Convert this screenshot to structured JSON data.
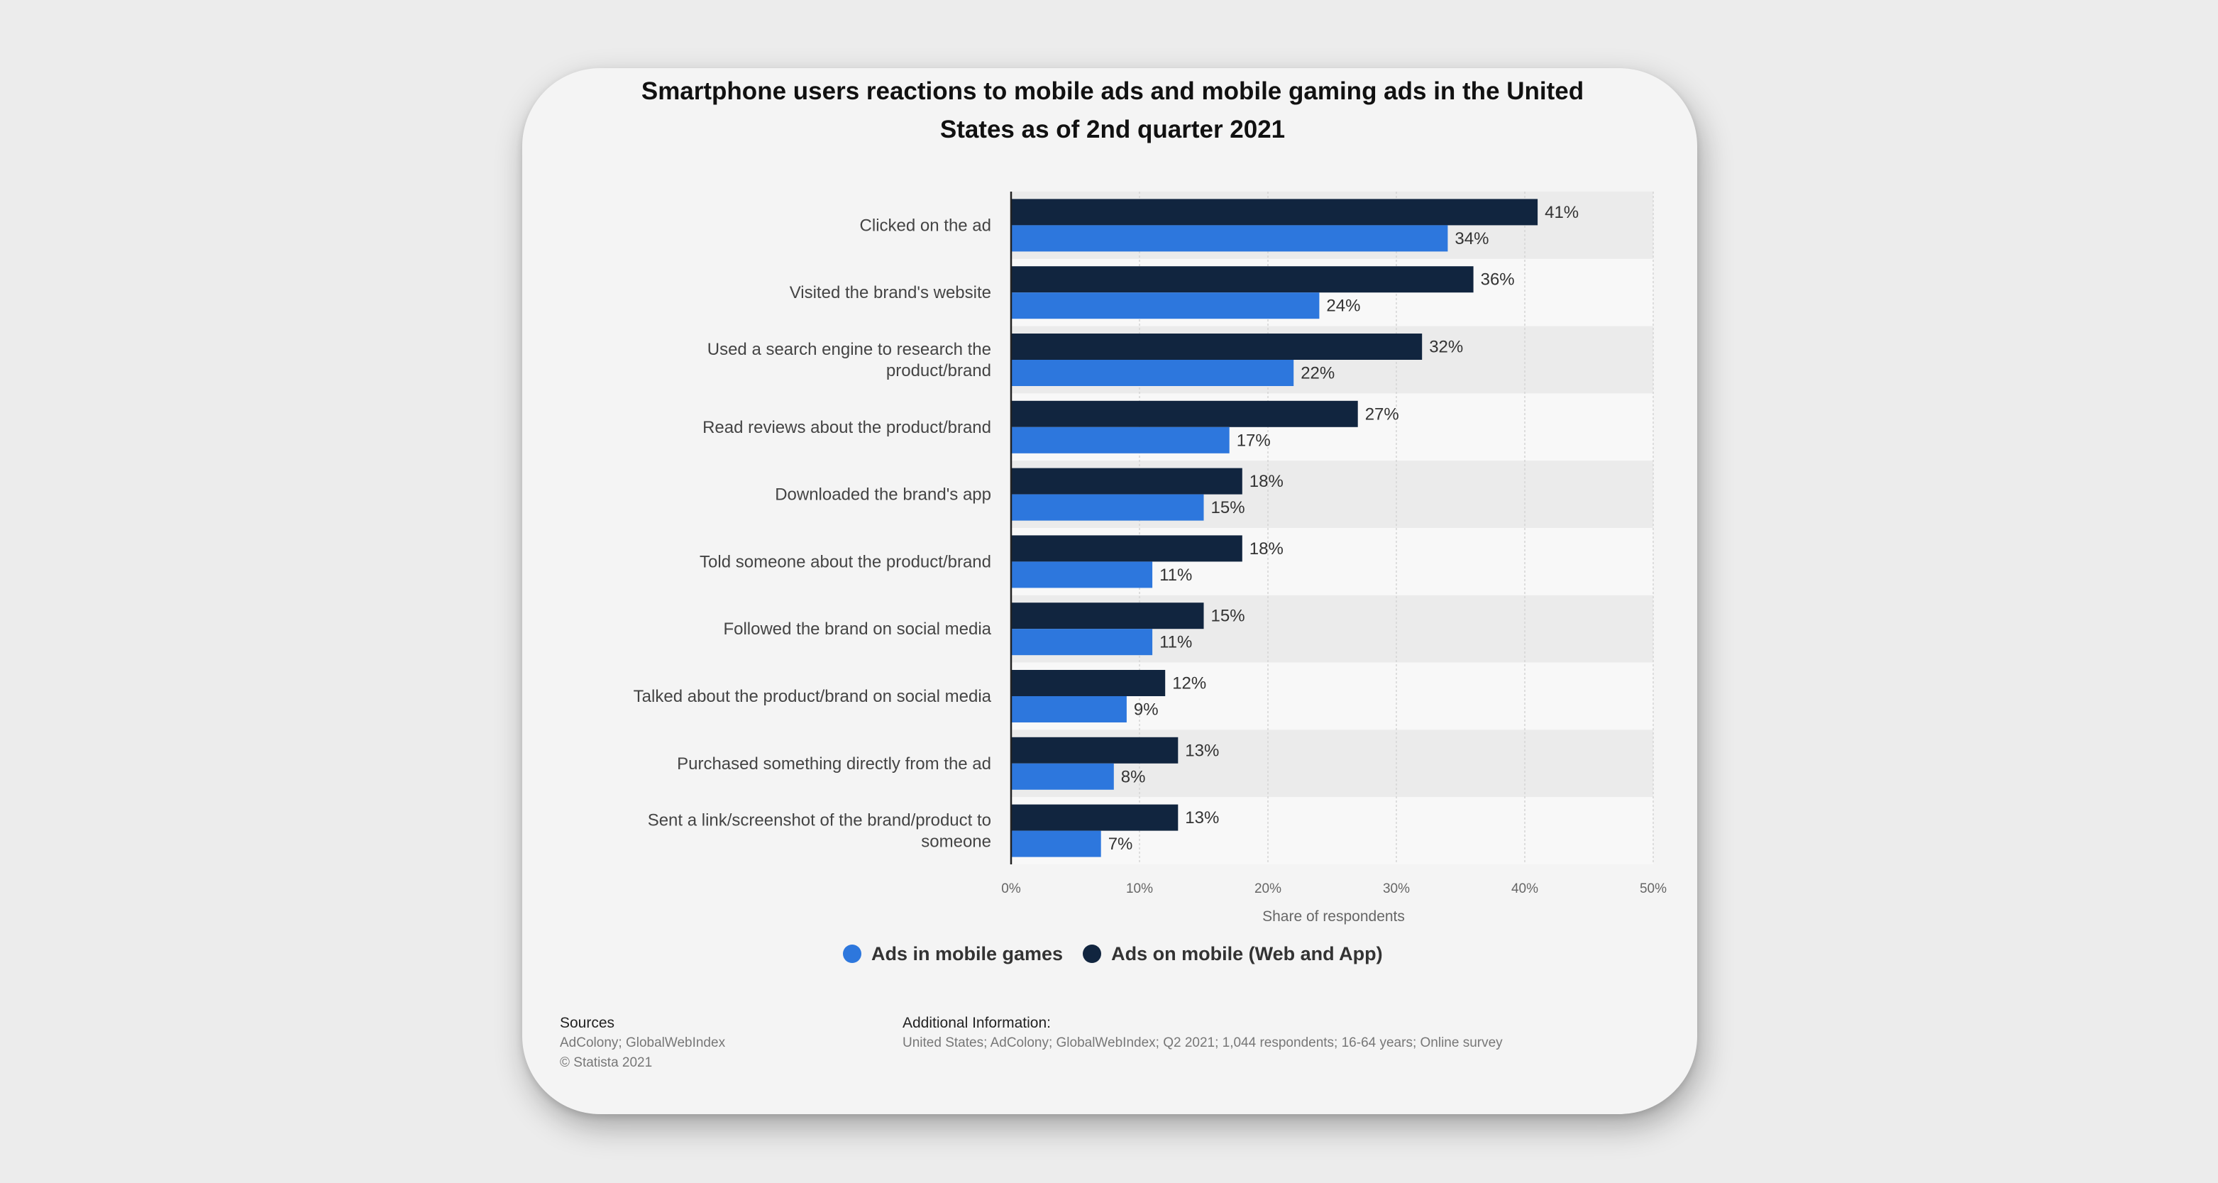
{
  "colors": {
    "mobile_games": "#2d77dd",
    "mobile_web_app": "#11253f",
    "band": "#ebebeb",
    "band_alt": "#f8f8f8",
    "grid": "#d4d4d4"
  },
  "chart_data": {
    "type": "bar",
    "orientation": "horizontal",
    "title": "Smartphone users reactions to mobile ads and mobile gaming ads in the United States as of 2nd quarter 2021",
    "xlabel": "Share of respondents",
    "ylabel": "",
    "xlim": [
      0,
      50
    ],
    "x_ticks": [
      "0%",
      "10%",
      "20%",
      "30%",
      "40%",
      "50%"
    ],
    "grid": true,
    "legend_position": "bottom-center",
    "categories": [
      "Clicked on the ad",
      "Visited the brand's website",
      "Used a search engine to research the product/brand",
      "Read reviews about the product/brand",
      "Downloaded the brand's app",
      "Told someone about the product/brand",
      "Followed the brand on social media",
      "Talked about the product/brand on social media",
      "Purchased something directly from the ad",
      "Sent a link/screenshot of the brand/product to someone"
    ],
    "category_lines": [
      [
        "Clicked on the ad"
      ],
      [
        "Visited the brand's website"
      ],
      [
        "Used a search engine to research the",
        "product/brand"
      ],
      [
        "Read reviews about the product/brand"
      ],
      [
        "Downloaded the brand's app"
      ],
      [
        "Told someone about the product/brand"
      ],
      [
        "Followed the brand on social media"
      ],
      [
        "Talked about the product/brand on social media"
      ],
      [
        "Purchased something directly from the ad"
      ],
      [
        "Sent a link/screenshot of the brand/product to",
        "someone"
      ]
    ],
    "series": [
      {
        "name": "Ads on mobile (Web and App)",
        "values": [
          41,
          36,
          32,
          27,
          18,
          18,
          15,
          12,
          13,
          13
        ]
      },
      {
        "name": "Ads in mobile games",
        "values": [
          34,
          24,
          22,
          17,
          15,
          11,
          11,
          9,
          8,
          7
        ]
      }
    ],
    "value_suffix": "%"
  },
  "legend": {
    "games_label": "Ads in mobile games",
    "web_label": "Ads on mobile (Web and App)"
  },
  "footer": {
    "sources_heading": "Sources",
    "sources_line1": "AdColony; GlobalWebIndex",
    "sources_line2": "© Statista 2021",
    "additional_heading": "Additional Information:",
    "additional_text": "United States; AdColony; GlobalWebIndex; Q2 2021; 1,044 respondents; 16-64 years; Online survey"
  }
}
